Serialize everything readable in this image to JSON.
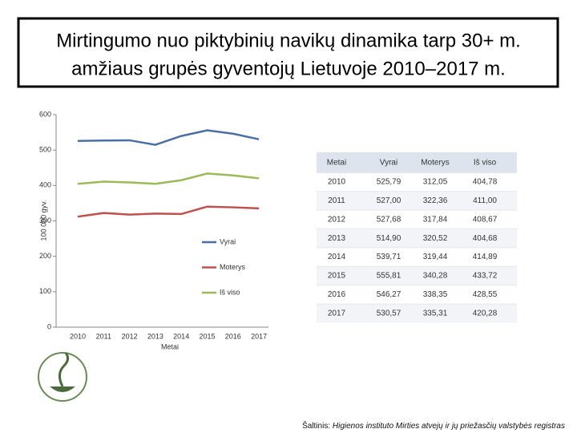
{
  "header": {
    "title_lines": [
      "Mirtingumo nuo piktybinių navikų dinamika tarp 30+ m.",
      "amžiaus grupės gyventojų Lietuvoje 2010–2017 m."
    ]
  },
  "chart_data": {
    "type": "line",
    "categories": [
      "2010",
      "2011",
      "2012",
      "2013",
      "2014",
      "2015",
      "2016",
      "2017"
    ],
    "series": [
      {
        "name": "Vyrai",
        "color": "#4a6fa5",
        "values": [
          525.79,
          527.0,
          527.68,
          514.9,
          539.71,
          555.81,
          546.27,
          530.57
        ]
      },
      {
        "name": "Moterys",
        "color": "#c0504d",
        "values": [
          312.05,
          322.36,
          317.84,
          320.52,
          319.44,
          340.28,
          338.35,
          335.31
        ]
      },
      {
        "name": "Iš viso",
        "color": "#9bbb59",
        "values": [
          404.78,
          411.0,
          408.67,
          404.68,
          414.89,
          433.72,
          428.55,
          420.28
        ]
      }
    ],
    "ylim": [
      0,
      600
    ],
    "yticks": [
      0,
      100,
      200,
      300,
      400,
      500,
      600
    ],
    "y_label": "100 000 gyv.",
    "x_label": "Metai"
  },
  "table": {
    "header": [
      "Metai",
      "Vyrai",
      "Moterys",
      "Iš viso"
    ],
    "rows": [
      [
        "2010",
        "525,79",
        "312,05",
        "404,78"
      ],
      [
        "2011",
        "527,00",
        "322,36",
        "411,00"
      ],
      [
        "2012",
        "527,68",
        "317,84",
        "408,67"
      ],
      [
        "2013",
        "514,90",
        "320,52",
        "404,68"
      ],
      [
        "2014",
        "539,71",
        "319,44",
        "414,89"
      ],
      [
        "2015",
        "555,81",
        "340,28",
        "433,72"
      ],
      [
        "2016",
        "546,27",
        "338,35",
        "428,55"
      ],
      [
        "2017",
        "530,57",
        "335,31",
        "420,28"
      ]
    ]
  },
  "source": {
    "label": "Šaltinis:",
    "text": "Higienos instituto Mirties atvejų ir jų priežasčių valstybės registras"
  }
}
